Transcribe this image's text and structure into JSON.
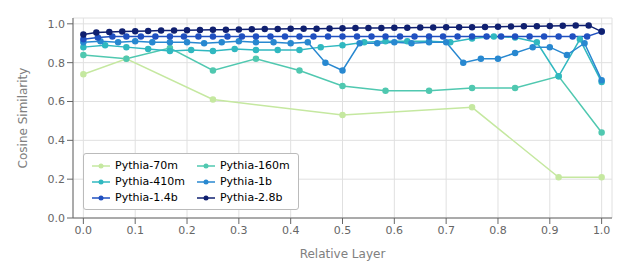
{
  "chart_data": {
    "type": "line",
    "xlabel": "Relative Layer",
    "ylabel": "Cosine Similarity",
    "xlim": [
      -0.02,
      1.02
    ],
    "ylim": [
      0,
      1.03
    ],
    "xticks": [
      {
        "value": 0.0,
        "label": "0.0"
      },
      0.1,
      0.2,
      0.3,
      0.4,
      0.5,
      0.6,
      0.7,
      0.8,
      0.9,
      {
        "value": 1.0,
        "label": "1.0"
      }
    ],
    "yticks": [
      {
        "value": 0.0,
        "label": "0.0"
      },
      0.2,
      0.4,
      0.6,
      0.8,
      {
        "value": 1.0,
        "label": "1.0"
      }
    ],
    "grid": true,
    "legend": "lower left",
    "series": [
      {
        "name": "Pythia-70m",
        "color": "#c5e8a0",
        "marker": "o",
        "x": [
          0.0,
          0.083,
          0.25,
          0.5,
          0.75,
          0.917,
          1.0
        ],
        "values": [
          0.74,
          0.82,
          0.61,
          0.53,
          0.57,
          0.21,
          0.21
        ]
      },
      {
        "name": "Pythia-160m",
        "color": "#50c8b0",
        "marker": "o",
        "x": [
          0.0,
          0.083,
          0.167,
          0.25,
          0.333,
          0.417,
          0.5,
          0.583,
          0.667,
          0.75,
          0.833,
          0.917,
          1.0
        ],
        "values": [
          0.84,
          0.82,
          0.875,
          0.76,
          0.82,
          0.76,
          0.68,
          0.655,
          0.655,
          0.67,
          0.67,
          0.73,
          0.44
        ]
      },
      {
        "name": "Pythia-410m",
        "color": "#30b8c0",
        "marker": "o",
        "x": [
          0.0,
          0.042,
          0.083,
          0.125,
          0.167,
          0.208,
          0.25,
          0.292,
          0.333,
          0.375,
          0.417,
          0.458,
          0.5,
          0.542,
          0.583,
          0.625,
          0.667,
          0.708,
          0.75,
          0.792,
          0.833,
          0.875,
          0.917,
          0.958,
          1.0
        ],
        "values": [
          0.88,
          0.89,
          0.88,
          0.87,
          0.86,
          0.865,
          0.86,
          0.87,
          0.865,
          0.865,
          0.865,
          0.88,
          0.89,
          0.905,
          0.91,
          0.91,
          0.91,
          0.905,
          0.925,
          0.935,
          0.93,
          0.905,
          0.73,
          0.92,
          0.7
        ]
      },
      {
        "name": "Pythia-1b",
        "color": "#2888d0",
        "marker": "o",
        "x": [
          0.0,
          0.033,
          0.067,
          0.1,
          0.133,
          0.167,
          0.2,
          0.233,
          0.267,
          0.3,
          0.333,
          0.367,
          0.4,
          0.433,
          0.467,
          0.5,
          0.533,
          0.567,
          0.6,
          0.633,
          0.667,
          0.7,
          0.733,
          0.767,
          0.8,
          0.833,
          0.867,
          0.9,
          0.933,
          0.967,
          1.0
        ],
        "values": [
          0.905,
          0.91,
          0.905,
          0.91,
          0.905,
          0.905,
          0.905,
          0.9,
          0.905,
          0.91,
          0.905,
          0.905,
          0.9,
          0.905,
          0.8,
          0.76,
          0.9,
          0.9,
          0.905,
          0.9,
          0.905,
          0.905,
          0.8,
          0.82,
          0.82,
          0.85,
          0.88,
          0.88,
          0.84,
          0.9,
          0.71
        ]
      },
      {
        "name": "Pythia-1.4b",
        "color": "#2050c0",
        "marker": "o",
        "x": [
          0.0,
          0.028,
          0.056,
          0.083,
          0.111,
          0.139,
          0.167,
          0.194,
          0.222,
          0.25,
          0.278,
          0.306,
          0.333,
          0.361,
          0.389,
          0.417,
          0.444,
          0.472,
          0.5,
          0.528,
          0.556,
          0.583,
          0.611,
          0.639,
          0.667,
          0.694,
          0.722,
          0.75,
          0.778,
          0.806,
          0.833,
          0.861,
          0.889,
          0.917,
          0.944,
          0.972,
          1.0
        ],
        "values": [
          0.92,
          0.93,
          0.935,
          0.935,
          0.935,
          0.935,
          0.935,
          0.935,
          0.935,
          0.935,
          0.935,
          0.935,
          0.935,
          0.935,
          0.935,
          0.935,
          0.935,
          0.935,
          0.935,
          0.935,
          0.935,
          0.935,
          0.935,
          0.935,
          0.935,
          0.935,
          0.935,
          0.935,
          0.935,
          0.935,
          0.935,
          0.935,
          0.935,
          0.935,
          0.935,
          0.935,
          0.96
        ]
      },
      {
        "name": "Pythia-2.8b",
        "color": "#102070",
        "marker": "o",
        "x": [
          0.0,
          0.025,
          0.05,
          0.075,
          0.1,
          0.125,
          0.15,
          0.175,
          0.2,
          0.225,
          0.25,
          0.275,
          0.3,
          0.325,
          0.35,
          0.375,
          0.4,
          0.425,
          0.45,
          0.475,
          0.5,
          0.525,
          0.55,
          0.575,
          0.6,
          0.625,
          0.65,
          0.675,
          0.7,
          0.725,
          0.75,
          0.775,
          0.8,
          0.825,
          0.85,
          0.875,
          0.9,
          0.925,
          0.95,
          0.975,
          1.0
        ],
        "values": [
          0.945,
          0.955,
          0.958,
          0.96,
          0.962,
          0.963,
          0.965,
          0.966,
          0.967,
          0.968,
          0.969,
          0.97,
          0.971,
          0.972,
          0.973,
          0.973,
          0.974,
          0.975,
          0.975,
          0.976,
          0.977,
          0.978,
          0.978,
          0.979,
          0.98,
          0.98,
          0.981,
          0.981,
          0.982,
          0.983,
          0.983,
          0.984,
          0.985,
          0.986,
          0.987,
          0.988,
          0.989,
          0.99,
          0.991,
          0.992,
          0.96
        ]
      }
    ]
  }
}
